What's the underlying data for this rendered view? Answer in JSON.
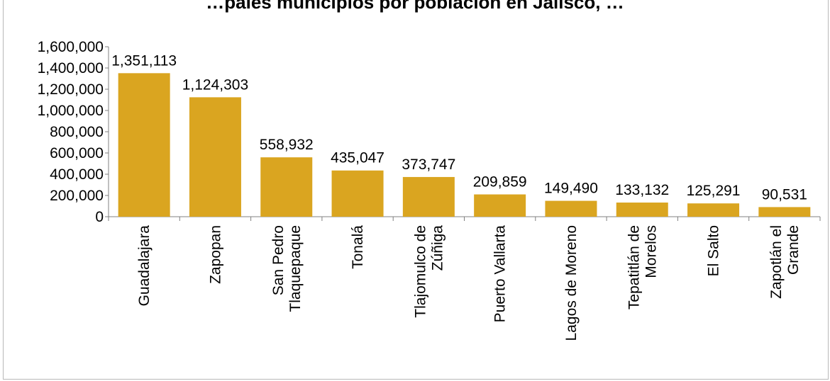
{
  "chart_data": {
    "type": "bar",
    "title": "…pales municipios por población en Jalisco, …",
    "xlabel": "",
    "ylabel": "",
    "ylim": [
      0,
      1600000
    ],
    "y_ticks": [
      "0",
      "200,000",
      "400,000",
      "600,000",
      "800,000",
      "1,000,000",
      "1,200,000",
      "1,400,000",
      "1,600,000"
    ],
    "y_tick_values": [
      0,
      200000,
      400000,
      600000,
      800000,
      1000000,
      1200000,
      1400000,
      1600000
    ],
    "grid": false,
    "legend": "none",
    "bar_color": "#DAA520",
    "categories": [
      [
        "Guadalajara"
      ],
      [
        "Zapopan"
      ],
      [
        "San Pedro",
        "Tlaquepaque"
      ],
      [
        "Tonalá"
      ],
      [
        "Tlajomulco de",
        "Zúñiga"
      ],
      [
        "Puerto Vallarta"
      ],
      [
        "Lagos de Moreno"
      ],
      [
        "Tepatitlán de",
        "Morelos"
      ],
      [
        "El Salto"
      ],
      [
        "Zapotlán el",
        "Grande"
      ]
    ],
    "values": [
      1351113,
      1124303,
      558932,
      435047,
      373747,
      209859,
      149490,
      133132,
      125291,
      90531
    ],
    "value_labels": [
      "1,351,113",
      "1,124,303",
      "558,932",
      "435,047",
      "373,747",
      "209,859",
      "149,490",
      "133,132",
      "125,291",
      "90,531"
    ]
  }
}
